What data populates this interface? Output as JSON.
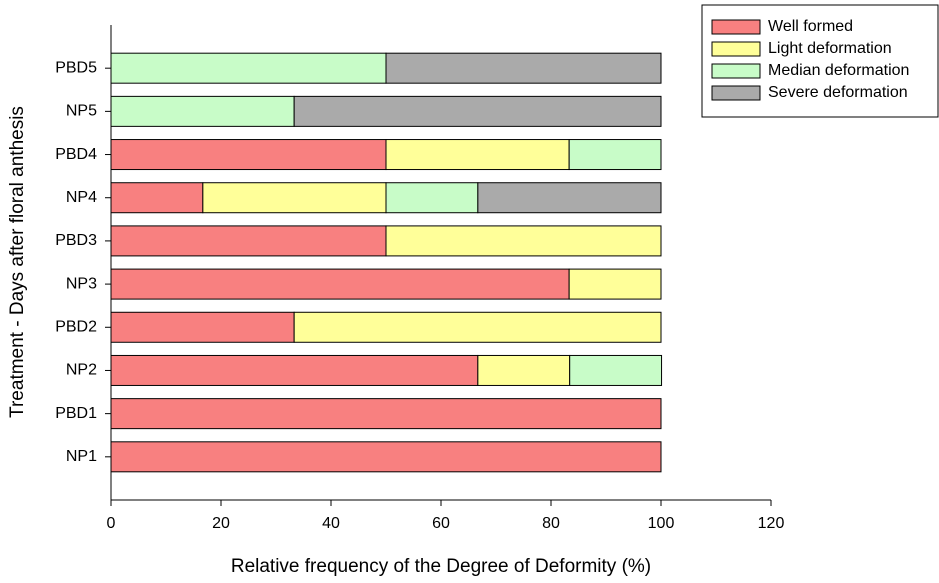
{
  "chart_data": {
    "type": "stacked-barh",
    "xlabel": "Relative frequency of the Degree of Deformity (%)",
    "ylabel": "Treatment - Days after floral anthesis",
    "categories": [
      "NP1",
      "PBD1",
      "NP2",
      "PBD2",
      "NP3",
      "PBD3",
      "NP4",
      "PBD4",
      "NP5",
      "PBD5"
    ],
    "series": [
      {
        "name": "Well formed",
        "color": "#f88080",
        "values": [
          100,
          100,
          66.7,
          33.3,
          83.3,
          50,
          16.7,
          50,
          0,
          0
        ]
      },
      {
        "name": "Light deformation",
        "color": "#ffff99",
        "values": [
          0,
          0,
          16.7,
          66.7,
          16.7,
          50,
          33.3,
          33.3,
          0,
          0
        ]
      },
      {
        "name": "Median deformation",
        "color": "#c8fcc8",
        "values": [
          0,
          0,
          16.7,
          0,
          0,
          0,
          16.7,
          16.7,
          33.3,
          50
        ]
      },
      {
        "name": "Severe deformation",
        "color": "#aaaaaa",
        "values": [
          0,
          0,
          0,
          0,
          0,
          0,
          33.3,
          0,
          66.7,
          50
        ]
      }
    ],
    "xlim": [
      0,
      120
    ],
    "xticks": [
      0,
      20,
      40,
      60,
      80,
      100,
      120
    ],
    "legend": "upper right"
  }
}
